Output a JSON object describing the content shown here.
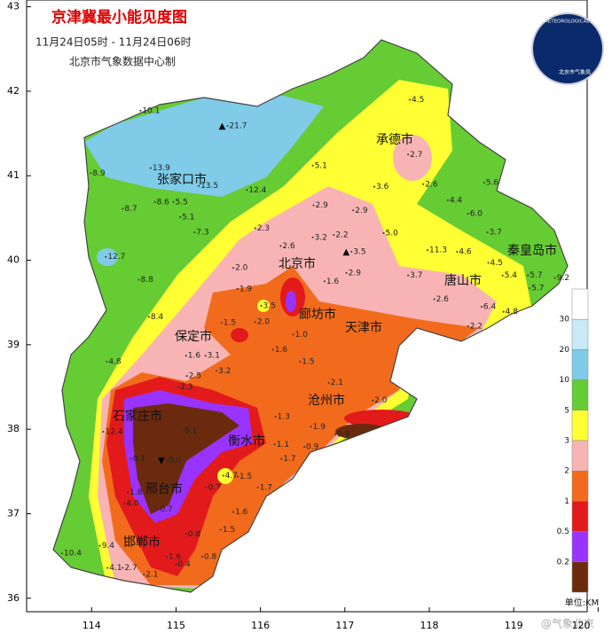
{
  "header": {
    "title": "京津冀最小能见度图",
    "period": "11月24日05时 - 11月24日06时",
    "producer": "北京市气象数据中心制"
  },
  "logo": {
    "text": "北京市气象局",
    "ring_text": "BEIJING METEOROLOGICAL SERVICE"
  },
  "watermark": "@气象北京",
  "map": {
    "lonlim": [
      113.23,
      119.87
    ],
    "latlim": [
      35.84,
      43.08
    ],
    "lon_ticks": [
      114,
      115,
      116,
      117,
      118,
      119,
      120
    ],
    "lat_ticks": [
      36,
      37,
      38,
      39,
      40,
      41,
      42,
      43
    ],
    "cities": [
      "张家口市",
      "承德市",
      "北京市",
      "秦皇岛市",
      "唐山市",
      "廊坊市",
      "天津市",
      "保定市",
      "沧州市",
      "石家庄市",
      "衡水市",
      "邢台市",
      "邯郸市"
    ],
    "stations": [
      {
        "v": 10.1,
        "lon": 114.6,
        "lat": 41.77
      },
      {
        "v": 21.7,
        "lon": 115.63,
        "lat": 41.59,
        "symbol": "▲"
      },
      {
        "v": 8.9,
        "lon": 114.01,
        "lat": 41.03
      },
      {
        "v": 13.9,
        "lon": 114.72,
        "lat": 41.09
      },
      {
        "v": 13.5,
        "lon": 115.29,
        "lat": 40.88
      },
      {
        "v": 12.4,
        "lon": 115.86,
        "lat": 40.83
      },
      {
        "v": 8.6,
        "lon": 114.77,
        "lat": 40.69
      },
      {
        "v": 5.5,
        "lon": 114.99,
        "lat": 40.69
      },
      {
        "v": 8.7,
        "lon": 114.39,
        "lat": 40.61
      },
      {
        "v": 5.1,
        "lon": 115.07,
        "lat": 40.51
      },
      {
        "v": 7.3,
        "lon": 115.24,
        "lat": 40.33
      },
      {
        "v": 12.7,
        "lon": 114.19,
        "lat": 40.04
      },
      {
        "v": 8.8,
        "lon": 114.58,
        "lat": 39.77
      },
      {
        "v": 8.4,
        "lon": 114.7,
        "lat": 39.33
      },
      {
        "v": 4.8,
        "lon": 114.2,
        "lat": 38.8
      },
      {
        "v": 12.4,
        "lon": 114.16,
        "lat": 37.97
      },
      {
        "v": 10.4,
        "lon": 113.67,
        "lat": 36.53
      },
      {
        "v": 9.4,
        "lon": 114.12,
        "lat": 36.62
      },
      {
        "v": 4.5,
        "lon": 117.79,
        "lat": 41.9
      },
      {
        "v": 2.7,
        "lon": 117.77,
        "lat": 41.25
      },
      {
        "v": 5.1,
        "lon": 116.64,
        "lat": 41.12
      },
      {
        "v": 3.6,
        "lon": 117.37,
        "lat": 40.87
      },
      {
        "v": 2.6,
        "lon": 117.95,
        "lat": 40.9
      },
      {
        "v": 5.6,
        "lon": 118.67,
        "lat": 40.92
      },
      {
        "v": 4.4,
        "lon": 118.24,
        "lat": 40.71
      },
      {
        "v": 6,
        "label": "6.0",
        "lon": 118.48,
        "lat": 40.55
      },
      {
        "v": 2.9,
        "lon": 116.65,
        "lat": 40.65
      },
      {
        "v": 2.9,
        "lon": 117.12,
        "lat": 40.59
      },
      {
        "v": 5,
        "label": "5.0",
        "lon": 117.48,
        "lat": 40.32
      },
      {
        "v": 3.7,
        "lon": 118.71,
        "lat": 40.33
      },
      {
        "v": 11.3,
        "lon": 118.0,
        "lat": 40.12
      },
      {
        "v": 4.6,
        "lon": 118.35,
        "lat": 40.1
      },
      {
        "v": 4.5,
        "lon": 118.72,
        "lat": 39.97
      },
      {
        "v": 5.4,
        "lon": 118.89,
        "lat": 39.82
      },
      {
        "v": 5.7,
        "lon": 119.19,
        "lat": 39.82
      },
      {
        "v": 9.2,
        "lon": 119.51,
        "lat": 39.79
      },
      {
        "v": 5.7,
        "lon": 119.21,
        "lat": 39.67
      },
      {
        "v": 6.4,
        "lon": 118.64,
        "lat": 39.45
      },
      {
        "v": 4.8,
        "lon": 118.9,
        "lat": 39.39
      },
      {
        "v": 2.2,
        "lon": 118.48,
        "lat": 39.22
      },
      {
        "v": 3.7,
        "lon": 117.77,
        "lat": 39.82
      },
      {
        "v": 2.6,
        "lon": 118.08,
        "lat": 39.54
      },
      {
        "v": 2.3,
        "lon": 115.96,
        "lat": 40.38
      },
      {
        "v": 2.6,
        "lon": 116.26,
        "lat": 40.17
      },
      {
        "v": 3.2,
        "lon": 116.64,
        "lat": 40.27
      },
      {
        "v": 2.2,
        "lon": 116.89,
        "lat": 40.3
      },
      {
        "v": 3.5,
        "lon": 117.1,
        "lat": 40.1,
        "symbol": "▲"
      },
      {
        "v": 2.9,
        "lon": 117.04,
        "lat": 39.85
      },
      {
        "v": 2,
        "label": "2.0",
        "lon": 115.7,
        "lat": 39.91
      },
      {
        "v": 1.9,
        "lon": 115.75,
        "lat": 39.66
      },
      {
        "v": 1.6,
        "lon": 116.78,
        "lat": 39.75
      },
      {
        "v": 3.5,
        "lon": 116.03,
        "lat": 39.46
      },
      {
        "v": 1.5,
        "lon": 115.56,
        "lat": 39.26
      },
      {
        "v": 2,
        "label": "2.0",
        "lon": 115.96,
        "lat": 39.27
      },
      {
        "v": 1,
        "label": "1.0",
        "lon": 116.41,
        "lat": 39.12
      },
      {
        "v": 1.6,
        "lon": 115.14,
        "lat": 38.87
      },
      {
        "v": 3.1,
        "lon": 115.37,
        "lat": 38.87
      },
      {
        "v": 1.6,
        "lon": 116.17,
        "lat": 38.94
      },
      {
        "v": 1.5,
        "lon": 116.49,
        "lat": 38.8
      },
      {
        "v": 3.2,
        "lon": 115.5,
        "lat": 38.69
      },
      {
        "v": 2.5,
        "lon": 115.15,
        "lat": 38.63
      },
      {
        "v": 2.3,
        "lon": 115.05,
        "lat": 38.5
      },
      {
        "v": 2.1,
        "lon": 116.83,
        "lat": 38.55
      },
      {
        "v": 1.3,
        "lon": 116.2,
        "lat": 38.15
      },
      {
        "v": 2,
        "label": "2.0",
        "lon": 117.35,
        "lat": 38.34
      },
      {
        "v": 1.1,
        "lon": 116.19,
        "lat": 37.82
      },
      {
        "v": 0.9,
        "lon": 116.54,
        "lat": 37.79
      },
      {
        "v": 1.7,
        "lon": 116.27,
        "lat": 37.65
      },
      {
        "v": 1.5,
        "lon": 115.75,
        "lat": 37.44
      },
      {
        "v": 1.7,
        "lon": 115.99,
        "lat": 37.31
      },
      {
        "v": 4.7,
        "lon": 115.58,
        "lat": 37.45
      },
      {
        "v": 0.7,
        "lon": 115.38,
        "lat": 37.31
      },
      {
        "v": 1.6,
        "lon": 115.7,
        "lat": 37.02
      },
      {
        "v": 1.5,
        "lon": 115.55,
        "lat": 36.81
      },
      {
        "v": 0.8,
        "lon": 115.14,
        "lat": 36.76
      },
      {
        "v": 1.6,
        "lon": 114.91,
        "lat": 36.49
      },
      {
        "v": 0.4,
        "lon": 115.02,
        "lat": 36.4
      },
      {
        "v": 0.8,
        "lon": 115.33,
        "lat": 36.49
      },
      {
        "v": 2.1,
        "lon": 114.64,
        "lat": 36.28
      },
      {
        "v": 2.7,
        "lon": 114.39,
        "lat": 36.36
      },
      {
        "v": 4.1,
        "lon": 114.21,
        "lat": 36.36
      },
      {
        "v": 1.8,
        "lon": 114.45,
        "lat": 37.25
      },
      {
        "v": 4,
        "label": "4.0",
        "lon": 114.41,
        "lat": 37.12
      },
      {
        "v": 0.1,
        "lon": 114.49,
        "lat": 37.65
      },
      {
        "v": 0,
        "label": "0.0",
        "lon": 114.91,
        "lat": 37.63,
        "symbol": "▼"
      },
      {
        "v": 0.1,
        "lon": 115.1,
        "lat": 37.98
      },
      {
        "v": 0.7,
        "lon": 114.81,
        "lat": 37.05
      },
      {
        "v": 1.9,
        "lon": 116.62,
        "lat": 38.03
      },
      {
        "v": 0.9,
        "lon": 116.91,
        "lat": 37.94
      }
    ]
  },
  "legend": {
    "levels": [
      30,
      20,
      10,
      5,
      3,
      2,
      1,
      0.5,
      0.2
    ],
    "colors": [
      "#ffffff",
      "#c8e9f6",
      "#7fcbe8",
      "#66cc33",
      "#ffff33",
      "#f8b4b4",
      "#f26b1d",
      "#e31a1c",
      "#9933ff",
      "#6b2a0e"
    ],
    "unit": "单位:KM"
  }
}
